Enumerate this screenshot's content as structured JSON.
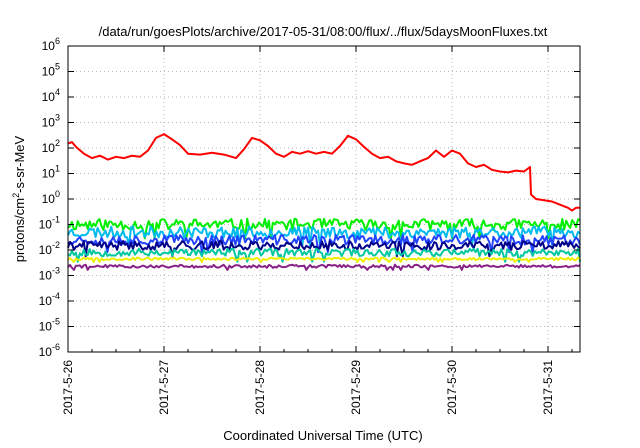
{
  "chart_data": {
    "type": "line",
    "title": "/data/run/goesPlots/archive/2017-05-31/08:00/flux/../flux/5daysMoonFluxes.txt",
    "xlabel": "Coordinated Universal Time (UTC)",
    "ylabel": "protons/cm2-s-sr-MeV",
    "ylabel_parts": {
      "pre": "protons/cm",
      "sup": "2",
      "post": "-s-sr-MeV"
    },
    "y_scale": "log",
    "ylim_exp": [
      -6,
      6
    ],
    "y_ticks": [
      {
        "base": "10",
        "exp": "-6",
        "e": -6
      },
      {
        "base": "10",
        "exp": "-5",
        "e": -5
      },
      {
        "base": "10",
        "exp": "-4",
        "e": -4
      },
      {
        "base": "10",
        "exp": "-3",
        "e": -3
      },
      {
        "base": "10",
        "exp": "-2",
        "e": -2
      },
      {
        "base": "10",
        "exp": "-1",
        "e": -1
      },
      {
        "base": "10",
        "exp": "0",
        "e": 0
      },
      {
        "base": "10",
        "exp": "1",
        "e": 1
      },
      {
        "base": "10",
        "exp": "2",
        "e": 2
      },
      {
        "base": "10",
        "exp": "3",
        "e": 3
      },
      {
        "base": "10",
        "exp": "4",
        "e": 4
      },
      {
        "base": "10",
        "exp": "5",
        "e": 5
      },
      {
        "base": "10",
        "exp": "6",
        "e": 6
      }
    ],
    "x_ticks": [
      "2017-5-26",
      "2017-5-27",
      "2017-5-28",
      "2017-5-29",
      "2017-5-30",
      "2017-5-31"
    ],
    "xlim": [
      "2017-05-26 00:00",
      "2017-05-31 08:00"
    ],
    "grid": true,
    "series": [
      {
        "color": "#ff0000",
        "points": [
          [
            "2017-05-26 00:00",
            150
          ],
          [
            "2017-05-26 01:00",
            170
          ],
          [
            "2017-05-26 02:00",
            110
          ],
          [
            "2017-05-26 04:00",
            60
          ],
          [
            "2017-05-26 06:00",
            40
          ],
          [
            "2017-05-26 08:00",
            50
          ],
          [
            "2017-05-26 10:00",
            35
          ],
          [
            "2017-05-26 12:00",
            45
          ],
          [
            "2017-05-26 14:00",
            40
          ],
          [
            "2017-05-26 16:00",
            50
          ],
          [
            "2017-05-26 18:00",
            45
          ],
          [
            "2017-05-26 20:00",
            80
          ],
          [
            "2017-05-26 22:00",
            250
          ],
          [
            "2017-05-27 00:00",
            350
          ],
          [
            "2017-05-27 02:00",
            220
          ],
          [
            "2017-05-27 04:00",
            130
          ],
          [
            "2017-05-27 06:00",
            60
          ],
          [
            "2017-05-27 09:00",
            55
          ],
          [
            "2017-05-27 12:00",
            65
          ],
          [
            "2017-05-27 15:00",
            55
          ],
          [
            "2017-05-27 18:00",
            40
          ],
          [
            "2017-05-27 20:00",
            90
          ],
          [
            "2017-05-27 22:00",
            250
          ],
          [
            "2017-05-28 00:00",
            200
          ],
          [
            "2017-05-28 02:00",
            120
          ],
          [
            "2017-05-28 04:00",
            60
          ],
          [
            "2017-05-28 06:00",
            45
          ],
          [
            "2017-05-28 08:00",
            70
          ],
          [
            "2017-05-28 10:00",
            60
          ],
          [
            "2017-05-28 12:00",
            75
          ],
          [
            "2017-05-28 14:00",
            60
          ],
          [
            "2017-05-28 16:00",
            70
          ],
          [
            "2017-05-28 18:00",
            60
          ],
          [
            "2017-05-28 20:00",
            120
          ],
          [
            "2017-05-28 22:00",
            300
          ],
          [
            "2017-05-29 00:00",
            220
          ],
          [
            "2017-05-29 02:00",
            110
          ],
          [
            "2017-05-29 04:00",
            60
          ],
          [
            "2017-05-29 06:00",
            40
          ],
          [
            "2017-05-29 08:00",
            45
          ],
          [
            "2017-05-29 10:00",
            30
          ],
          [
            "2017-05-29 12:00",
            25
          ],
          [
            "2017-05-29 14:00",
            22
          ],
          [
            "2017-05-29 16:00",
            30
          ],
          [
            "2017-05-29 18:00",
            40
          ],
          [
            "2017-05-29 20:00",
            80
          ],
          [
            "2017-05-29 22:00",
            45
          ],
          [
            "2017-05-30 00:00",
            80
          ],
          [
            "2017-05-30 02:00",
            60
          ],
          [
            "2017-05-30 04:00",
            25
          ],
          [
            "2017-05-30 06:00",
            18
          ],
          [
            "2017-05-30 08:00",
            22
          ],
          [
            "2017-05-30 10:00",
            14
          ],
          [
            "2017-05-30 12:00",
            12
          ],
          [
            "2017-05-30 14:00",
            11
          ],
          [
            "2017-05-30 16:00",
            13
          ],
          [
            "2017-05-30 18:00",
            12
          ],
          [
            "2017-05-30 19:30",
            18
          ],
          [
            "2017-05-30 19:45",
            1.5
          ],
          [
            "2017-05-30 21:00",
            1.0
          ],
          [
            "2017-05-30 23:00",
            0.9
          ],
          [
            "2017-05-31 01:00",
            0.8
          ],
          [
            "2017-05-31 03:00",
            0.6
          ],
          [
            "2017-05-31 05:00",
            0.45
          ],
          [
            "2017-05-31 06:00",
            0.35
          ],
          [
            "2017-05-31 07:00",
            0.45
          ],
          [
            "2017-05-31 08:00",
            0.45
          ]
        ]
      },
      {
        "color": "#00ee00",
        "level": 0.1,
        "spread": 0.45,
        "seed": 11
      },
      {
        "color": "#00bbee",
        "level": 0.05,
        "spread": 0.45,
        "seed": 23
      },
      {
        "color": "#2244ff",
        "level": 0.025,
        "spread": 0.4,
        "seed": 37
      },
      {
        "color": "#000088",
        "level": 0.015,
        "spread": 0.35,
        "seed": 41
      },
      {
        "color": "#00c8a0",
        "level": 0.008,
        "spread": 0.3,
        "seed": 53
      },
      {
        "color": "#eeee00",
        "level": 0.0045,
        "spread": 0.1,
        "seed": 67
      },
      {
        "color": "#882288",
        "level": 0.0023,
        "spread": 0.12,
        "seed": 79
      }
    ]
  }
}
